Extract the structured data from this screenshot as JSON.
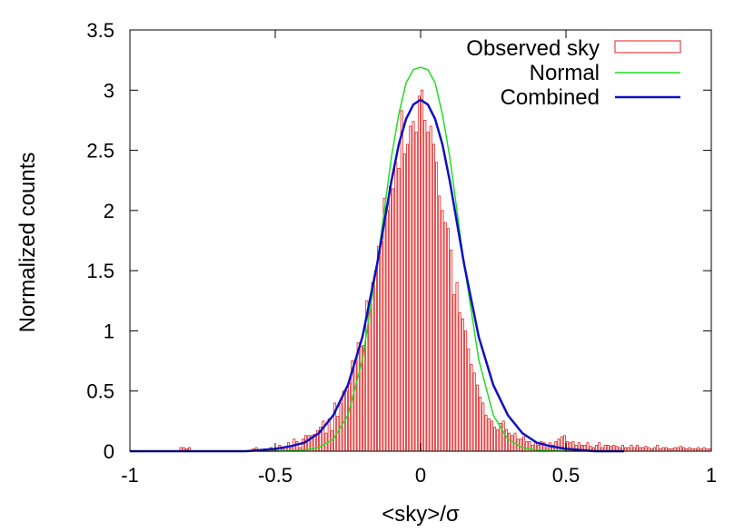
{
  "chart_data": {
    "type": "histogram",
    "title": "",
    "xlabel": "<sky>/σ",
    "ylabel": "Normalized counts",
    "xlim": [
      -1,
      1
    ],
    "ylim": [
      0,
      3.5
    ],
    "x_ticks": [
      -1,
      -0.5,
      0,
      0.5,
      1
    ],
    "x_tick_labels": [
      "-1",
      "-0.5",
      "0",
      "0.5",
      "1"
    ],
    "y_ticks": [
      0,
      0.5,
      1,
      1.5,
      2,
      2.5,
      3,
      3.5
    ],
    "y_tick_labels": [
      "0",
      "0.5",
      "1",
      "1.5",
      "2",
      "2.5",
      "3",
      "3.5"
    ],
    "grid": false,
    "legend_position": "top-right",
    "series": [
      {
        "name": "Observed sky",
        "kind": "histogram",
        "color": "#e02020",
        "bin_width": 0.01,
        "bin_centers": [
          -0.995,
          -0.985,
          -0.975,
          -0.965,
          -0.955,
          -0.945,
          -0.935,
          -0.925,
          -0.915,
          -0.905,
          -0.895,
          -0.885,
          -0.875,
          -0.865,
          -0.855,
          -0.845,
          -0.835,
          -0.825,
          -0.815,
          -0.805,
          -0.795,
          -0.785,
          -0.775,
          -0.765,
          -0.755,
          -0.745,
          -0.735,
          -0.725,
          -0.715,
          -0.705,
          -0.695,
          -0.685,
          -0.675,
          -0.665,
          -0.655,
          -0.645,
          -0.635,
          -0.625,
          -0.615,
          -0.605,
          -0.595,
          -0.585,
          -0.575,
          -0.565,
          -0.555,
          -0.545,
          -0.535,
          -0.525,
          -0.515,
          -0.505,
          -0.495,
          -0.485,
          -0.475,
          -0.465,
          -0.455,
          -0.445,
          -0.435,
          -0.425,
          -0.415,
          -0.405,
          -0.395,
          -0.385,
          -0.375,
          -0.365,
          -0.355,
          -0.345,
          -0.335,
          -0.325,
          -0.315,
          -0.305,
          -0.295,
          -0.285,
          -0.275,
          -0.265,
          -0.255,
          -0.245,
          -0.235,
          -0.225,
          -0.215,
          -0.205,
          -0.195,
          -0.185,
          -0.175,
          -0.165,
          -0.155,
          -0.145,
          -0.135,
          -0.125,
          -0.115,
          -0.105,
          -0.095,
          -0.085,
          -0.075,
          -0.065,
          -0.055,
          -0.045,
          -0.035,
          -0.025,
          -0.015,
          -0.005,
          0.005,
          0.015,
          0.025,
          0.035,
          0.045,
          0.055,
          0.065,
          0.075,
          0.085,
          0.095,
          0.105,
          0.115,
          0.125,
          0.135,
          0.145,
          0.155,
          0.165,
          0.175,
          0.185,
          0.195,
          0.205,
          0.215,
          0.225,
          0.235,
          0.245,
          0.255,
          0.265,
          0.275,
          0.285,
          0.295,
          0.305,
          0.315,
          0.325,
          0.335,
          0.345,
          0.355,
          0.365,
          0.375,
          0.385,
          0.395,
          0.405,
          0.415,
          0.425,
          0.435,
          0.445,
          0.455,
          0.465,
          0.475,
          0.485,
          0.495,
          0.505,
          0.515,
          0.525,
          0.535,
          0.545,
          0.555,
          0.565,
          0.575,
          0.585,
          0.595,
          0.605,
          0.615,
          0.625,
          0.635,
          0.645,
          0.655,
          0.665,
          0.675,
          0.685,
          0.695,
          0.705,
          0.715,
          0.725,
          0.735,
          0.745,
          0.755,
          0.765,
          0.775,
          0.785,
          0.795,
          0.805,
          0.815,
          0.825,
          0.835,
          0.845,
          0.855,
          0.865,
          0.875,
          0.885,
          0.895,
          0.905,
          0.915,
          0.925,
          0.935,
          0.945,
          0.955,
          0.965,
          0.975,
          0.985,
          0.995
        ],
        "values": [
          0,
          0,
          0,
          0,
          0,
          0,
          0,
          0,
          0,
          0,
          0,
          0,
          0,
          0,
          0,
          0,
          0,
          0.03,
          0.03,
          0.02,
          0.03,
          0,
          0,
          0,
          0,
          0,
          0,
          0,
          0,
          0,
          0,
          0,
          0,
          0,
          0,
          0,
          0,
          0,
          0,
          0,
          0,
          0,
          0.02,
          0.03,
          0,
          0,
          0.02,
          0,
          0.03,
          0.02,
          0.02,
          0.05,
          0.02,
          0.03,
          0.07,
          0.04,
          0.1,
          0.08,
          0.03,
          0.1,
          0.13,
          0.13,
          0.13,
          0.14,
          0.17,
          0.2,
          0.25,
          0.15,
          0.27,
          0.17,
          0.4,
          0.29,
          0.4,
          0.5,
          0.5,
          0.57,
          0.75,
          0.75,
          0.9,
          0.87,
          0.88,
          1.25,
          1.18,
          1.4,
          1.5,
          1.7,
          1.74,
          2.1,
          2.0,
          2.2,
          2.18,
          2.4,
          2.35,
          2.83,
          2.47,
          2.55,
          2.7,
          2.74,
          2.65,
          2.95,
          3.0,
          2.75,
          2.65,
          2.7,
          2.55,
          2.4,
          2.12,
          2.0,
          1.9,
          1.85,
          1.67,
          1.3,
          1.4,
          1.15,
          1.1,
          1.0,
          0.85,
          0.72,
          0.65,
          0.55,
          0.45,
          0.4,
          0.3,
          0.27,
          0.25,
          0.2,
          0.18,
          0.23,
          0.25,
          0.18,
          0.15,
          0.13,
          0.15,
          0.1,
          0.1,
          0.12,
          0.08,
          0.08,
          0.05,
          0.08,
          0.05,
          0.08,
          0.07,
          0.03,
          0.07,
          0.05,
          0.08,
          0.1,
          0.12,
          0.13,
          0.08,
          0.07,
          0.08,
          0.05,
          0.07,
          0.05,
          0.05,
          0.07,
          0.04,
          0.03,
          0.05,
          0.07,
          0.03,
          0.05,
          0.05,
          0.04,
          0.05,
          0.04,
          0.03,
          0.05,
          0.03,
          0.03,
          0.05,
          0.03,
          0.05,
          0.03,
          0.03,
          0.04,
          0.03,
          0.02,
          0.03,
          0.05,
          0.02,
          0.03,
          0.03,
          0.02,
          0.02,
          0.03,
          0.03,
          0.04,
          0.03,
          0.02,
          0.03,
          0.02,
          0.02,
          0.03,
          0.02,
          0.03,
          0.02,
          0.02
        ]
      },
      {
        "name": "Normal",
        "kind": "line",
        "color": "#22dd22",
        "x": [
          -1.0,
          -0.5,
          -0.4,
          -0.35,
          -0.3,
          -0.25,
          -0.2,
          -0.15,
          -0.1,
          -0.075,
          -0.05,
          -0.025,
          0.0,
          0.025,
          0.05,
          0.075,
          0.1,
          0.15,
          0.2,
          0.25,
          0.3,
          0.35,
          0.4,
          0.5,
          0.6
        ],
        "y": [
          0.0,
          0.0,
          0.01,
          0.03,
          0.1,
          0.3,
          0.76,
          1.55,
          2.45,
          2.8,
          3.06,
          3.17,
          3.19,
          3.17,
          3.06,
          2.8,
          2.45,
          1.55,
          0.76,
          0.3,
          0.1,
          0.03,
          0.01,
          0.0,
          0.0
        ]
      },
      {
        "name": "Combined",
        "kind": "line",
        "color": "#1010c0",
        "x": [
          -1.0,
          -0.7,
          -0.6,
          -0.5,
          -0.45,
          -0.4,
          -0.35,
          -0.3,
          -0.25,
          -0.2,
          -0.15,
          -0.1,
          -0.075,
          -0.05,
          -0.025,
          0.0,
          0.025,
          0.05,
          0.075,
          0.1,
          0.15,
          0.2,
          0.25,
          0.3,
          0.35,
          0.4,
          0.45,
          0.5,
          0.6,
          0.7
        ],
        "y": [
          0.0,
          0.0,
          0.0,
          0.02,
          0.04,
          0.07,
          0.15,
          0.3,
          0.55,
          0.95,
          1.55,
          2.25,
          2.55,
          2.76,
          2.88,
          2.92,
          2.88,
          2.76,
          2.55,
          2.25,
          1.55,
          0.95,
          0.55,
          0.3,
          0.15,
          0.07,
          0.04,
          0.02,
          0.0,
          0.0
        ]
      }
    ]
  }
}
